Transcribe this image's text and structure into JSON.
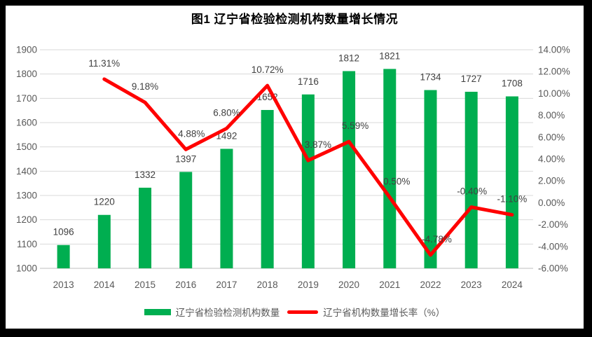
{
  "chart_data": {
    "type": "combo",
    "title": "图1 辽宁省检验检测机构数量增长情况",
    "categories": [
      "2013",
      "2014",
      "2015",
      "2016",
      "2017",
      "2018",
      "2019",
      "2020",
      "2021",
      "2022",
      "2023",
      "2024"
    ],
    "series": [
      {
        "name": "辽宁省检验检测机构数量",
        "type": "bar",
        "axis": "left",
        "color": "#00AE50",
        "values": [
          1096,
          1220,
          1332,
          1397,
          1492,
          1652,
          1716,
          1812,
          1821,
          1734,
          1727,
          1708
        ],
        "labels": [
          "1096",
          "1220",
          "1332",
          "1397",
          "1492",
          "1652",
          "1716",
          "1812",
          "1821",
          "1734",
          "1727",
          "1708"
        ]
      },
      {
        "name": "辽宁省机构数量增长率（%）",
        "type": "line",
        "axis": "right",
        "color": "#FF0000",
        "values": [
          null,
          11.31,
          9.18,
          4.88,
          6.8,
          10.72,
          3.87,
          5.59,
          0.5,
          -4.78,
          -0.4,
          -1.1
        ],
        "labels": [
          null,
          "11.31%",
          "9.18%",
          "4.88%",
          "6.80%",
          "10.72%",
          "3.87%",
          "5.59%",
          "0.50%",
          "-4.78%",
          "-0.40%",
          "-1.10%"
        ]
      }
    ],
    "left_axis": {
      "min": 1000,
      "max": 1900,
      "step": 100,
      "ticks": [
        "1000",
        "1100",
        "1200",
        "1300",
        "1400",
        "1500",
        "1600",
        "1700",
        "1800",
        "1900"
      ]
    },
    "right_axis": {
      "min": -6,
      "max": 14,
      "step": 2,
      "ticks": [
        "-6.00%",
        "-4.00%",
        "-2.00%",
        "0.00%",
        "2.00%",
        "4.00%",
        "6.00%",
        "8.00%",
        "10.00%",
        "12.00%",
        "14.00%"
      ]
    },
    "grid": true,
    "legend_position": "bottom",
    "colors": {
      "gridline": "#D9D9D9",
      "axis_line": "#BFBFBF",
      "tick_text": "#595959",
      "data_label": "#404040",
      "title": "#000000",
      "background": "#FFFFFF",
      "outer_border": "#000000"
    }
  }
}
